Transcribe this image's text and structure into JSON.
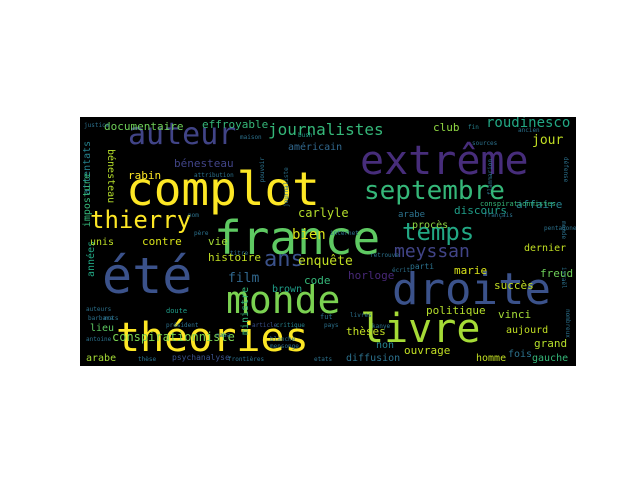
{
  "words": [
    {
      "text": "complot",
      "color": "#fde725"
    },
    {
      "text": "france",
      "color": "#5ec962"
    },
    {
      "text": "été",
      "color": "#3b528b"
    },
    {
      "text": "droite",
      "color": "#3b528b"
    },
    {
      "text": "extrême",
      "color": "#472d7b"
    },
    {
      "text": "monde",
      "color": "#7ad151"
    },
    {
      "text": "théories",
      "color": "#fde725"
    },
    {
      "text": "livre",
      "color": "#a5db36"
    },
    {
      "text": "auteur",
      "color": "#414487"
    },
    {
      "text": "septembre",
      "color": "#35b779"
    },
    {
      "text": "thierry",
      "color": "#fde725"
    },
    {
      "text": "temps",
      "color": "#22a884"
    },
    {
      "text": "ans",
      "color": "#3b528b"
    },
    {
      "text": "journalistes",
      "color": "#35b779"
    },
    {
      "text": "meyssan",
      "color": "#414487"
    },
    {
      "text": "bien",
      "color": "#d8e219"
    },
    {
      "text": "enquête",
      "color": "#c2df23"
    },
    {
      "text": "carlyle",
      "color": "#b5de2b"
    },
    {
      "text": "conspirationniste",
      "color": "#7ad151"
    },
    {
      "text": "contre",
      "color": "#d8e219"
    },
    {
      "text": "vie",
      "color": "#a5db36"
    },
    {
      "text": "film",
      "color": "#31688e"
    },
    {
      "text": "histoire",
      "color": "#c2df23"
    },
    {
      "text": "code",
      "color": "#35b779"
    },
    {
      "text": "brown",
      "color": "#1f9e89"
    },
    {
      "text": "horloge",
      "color": "#482878"
    },
    {
      "text": "documentaire",
      "color": "#6ece58"
    },
    {
      "text": "effroyable",
      "color": "#35b779"
    },
    {
      "text": "américain",
      "color": "#31688e"
    },
    {
      "text": "club",
      "color": "#90d743"
    },
    {
      "text": "roudinesco",
      "color": "#22a884"
    },
    {
      "text": "jour",
      "color": "#c2df23"
    },
    {
      "text": "bénesteau",
      "color": "#414487"
    },
    {
      "text": "rabin",
      "color": "#fde725"
    },
    {
      "text": "discours",
      "color": "#1f9e89"
    },
    {
      "text": "affaire",
      "color": "#26828e"
    },
    {
      "text": "procès",
      "color": "#90d743"
    },
    {
      "text": "dernier",
      "color": "#c2df23"
    },
    {
      "text": "marie",
      "color": "#d8e219"
    },
    {
      "text": "freud",
      "color": "#6ece58"
    },
    {
      "text": "politique",
      "color": "#b5de2b"
    },
    {
      "text": "succès",
      "color": "#c2df23"
    },
    {
      "text": "vinci",
      "color": "#a5db36"
    },
    {
      "text": "grand",
      "color": "#b5de2b"
    },
    {
      "text": "ouvrage",
      "color": "#c2df23"
    },
    {
      "text": "thèses",
      "color": "#c2df23"
    },
    {
      "text": "non",
      "color": "#26828e"
    },
    {
      "text": "diffusion",
      "color": "#2c728e"
    },
    {
      "text": "homme",
      "color": "#c2df23"
    },
    {
      "text": "fois",
      "color": "#2c728e"
    },
    {
      "text": "gauche",
      "color": "#35b779"
    },
    {
      "text": "aujourd",
      "color": "#c2df23"
    },
    {
      "text": "arabe",
      "color": "#a5db36"
    },
    {
      "text": "psychanalyse",
      "color": "#3b528b"
    },
    {
      "text": "lieu",
      "color": "#5ec962"
    },
    {
      "text": "années",
      "color": "#22a884"
    },
    {
      "text": "unis",
      "color": "#bddf26"
    },
    {
      "text": "attentats",
      "color": "#26828e"
    },
    {
      "text": "bénesteau",
      "color": "#b5de2b"
    },
    {
      "text": "imposture",
      "color": "#35b779"
    },
    {
      "text": "ministre",
      "color": "#35b779"
    },
    {
      "text": "conspirationnistes",
      "color": "#35b779"
    },
    {
      "text": "doute",
      "color": "#1f9e89"
    },
    {
      "text": "parti",
      "color": "#2c728e"
    },
    {
      "text": "fut",
      "color": "#2c728e"
    },
    {
      "text": "justice",
      "color": "#2c728e"
    },
    {
      "text": "maison",
      "color": "#2c728e"
    },
    {
      "text": "bush",
      "color": "#1f9e89"
    },
    {
      "text": "fin",
      "color": "#26828e"
    },
    {
      "text": "ancien",
      "color": "#2c728e"
    },
    {
      "text": "défense",
      "color": "#2c728e"
    },
    {
      "text": "français",
      "color": "#2c728e"
    },
    {
      "text": "flammarion",
      "color": "#2c728e"
    },
    {
      "text": "sources",
      "color": "#2c728e"
    },
    {
      "text": "etats",
      "color": "#2c728e"
    },
    {
      "text": "mots",
      "color": "#2c728e"
    },
    {
      "text": "auteurs",
      "color": "#2c728e"
    },
    {
      "text": "barbara",
      "color": "#2c728e"
    },
    {
      "text": "antoine",
      "color": "#2c728e"
    },
    {
      "text": "thèse",
      "color": "#2c728e"
    },
    {
      "text": "frontières",
      "color": "#2c728e"
    },
    {
      "text": "président",
      "color": "#2c728e"
    },
    {
      "text": "nasa",
      "color": "#2c728e"
    },
    {
      "text": "pays",
      "color": "#2c728e"
    },
    {
      "text": "article",
      "color": "#3b528b"
    },
    {
      "text": "critique",
      "color": "#26828e"
    },
    {
      "text": "titre",
      "color": "#2c728e"
    },
    {
      "text": "blanche",
      "color": "#2c728e"
    },
    {
      "text": "mensonge",
      "color": "#2c728e"
    },
    {
      "text": "kanye",
      "color": "#2c728e"
    },
    {
      "text": "écrit",
      "color": "#2c728e"
    },
    {
      "text": "arabe",
      "color": "#2c728e"
    },
    {
      "text": "attribution",
      "color": "#2c728e"
    },
    {
      "text": "retrouve",
      "color": "#2c728e"
    },
    {
      "text": "internet",
      "color": "#2c728e"
    },
    {
      "text": "nom",
      "color": "#2c728e"
    },
    {
      "text": "père",
      "color": "#2c728e"
    },
    {
      "text": "pouvoir",
      "color": "#2c728e"
    },
    {
      "text": "journaliste",
      "color": "#2c728e"
    },
    {
      "text": "pentagone",
      "color": "#2c728e"
    },
    {
      "text": "israël",
      "color": "#2c728e"
    },
    {
      "text": "nombreux",
      "color": "#2c728e"
    },
    {
      "text": "monde",
      "color": "#2c728e"
    },
    {
      "text": "livres",
      "color": "#2c728e"
    }
  ]
}
